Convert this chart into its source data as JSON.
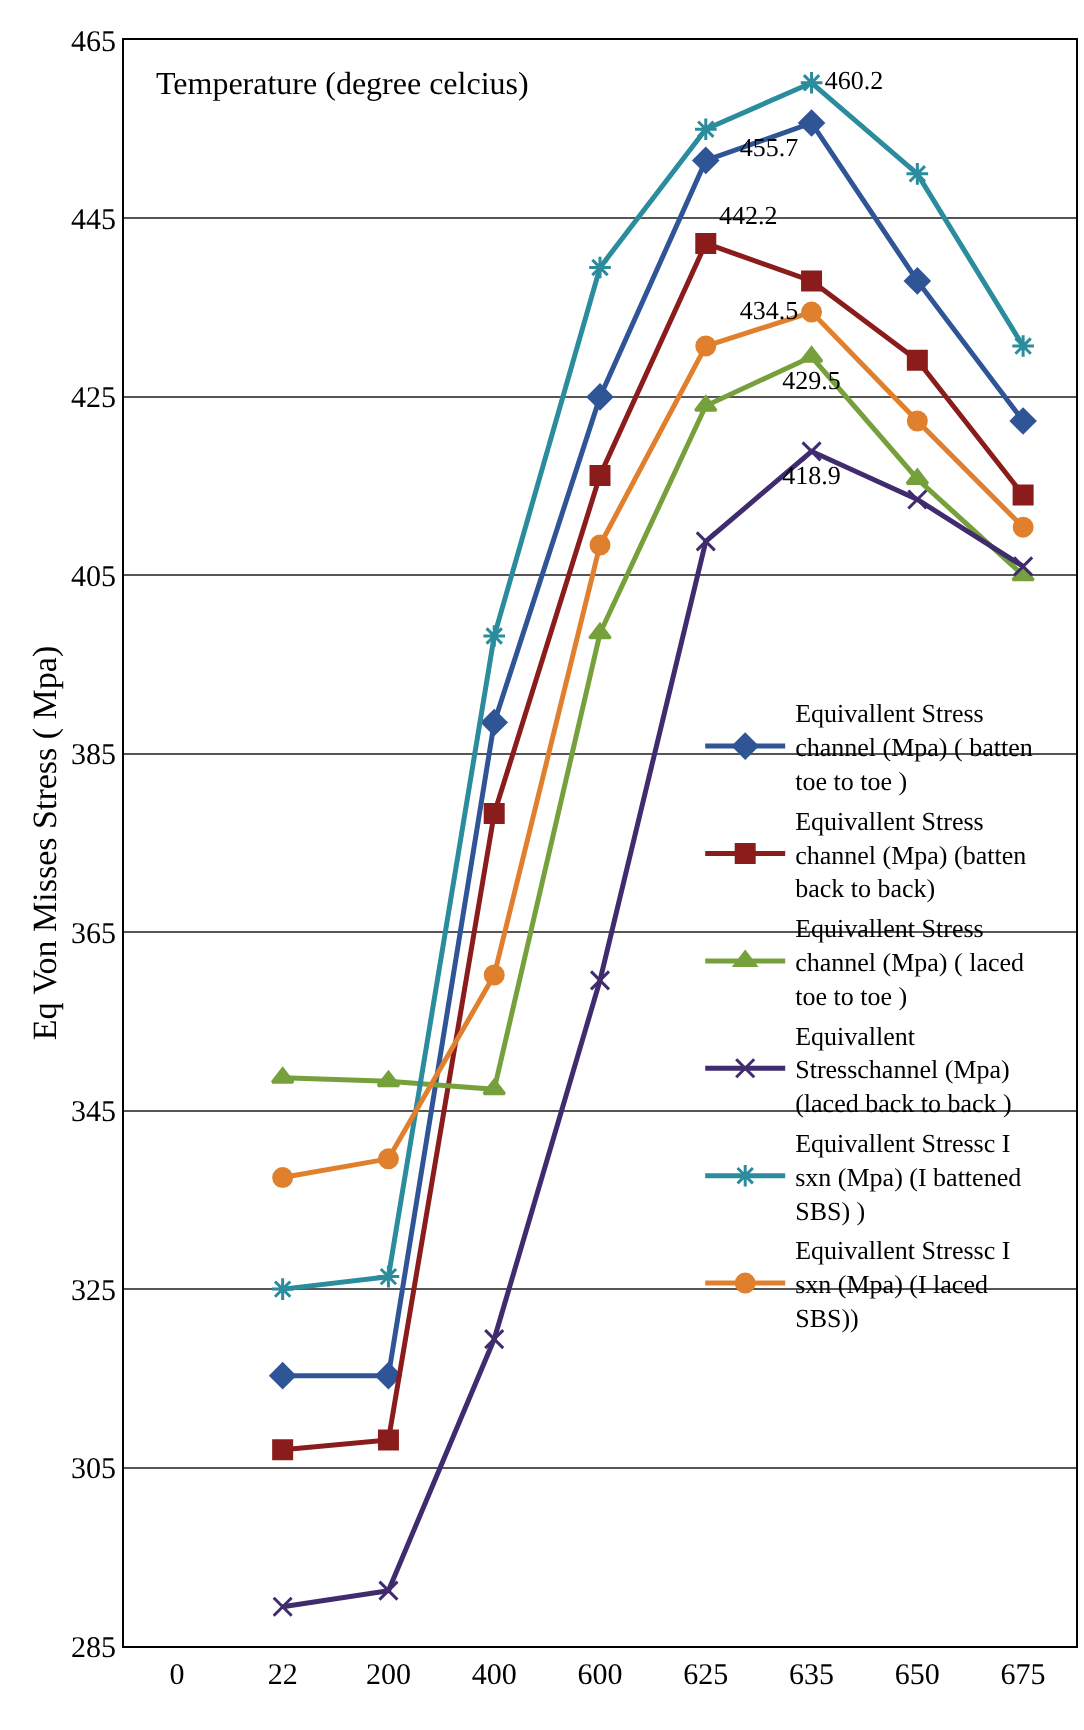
{
  "chart_data": {
    "type": "line",
    "xlabel": "Temperature (degree celcius)",
    "ylabel": "Eq Von Misses Stress ( Mpa)",
    "categories": [
      "0",
      "22",
      "200",
      "400",
      "600",
      "625",
      "635",
      "650",
      "675"
    ],
    "ylim": [
      285,
      465
    ],
    "yticks": [
      285,
      305,
      325,
      345,
      365,
      385,
      405,
      425,
      445,
      465
    ],
    "grid": "y",
    "legend": "right",
    "series": [
      {
        "name": "Equivallent Stress channel (Mpa) ( batten toe to toe )",
        "color": "#2f5597",
        "marker": "diamond",
        "values": [
          null,
          315.3,
          315.3,
          388.5,
          425,
          451.5,
          455.7,
          438,
          422.3
        ],
        "value_labels": [
          null,
          null,
          null,
          null,
          null,
          null,
          "455.7",
          null,
          null
        ]
      },
      {
        "name": "Equivallent Stress channel (Mpa) (batten back to back)",
        "color": "#8b1c1c",
        "marker": "square",
        "values": [
          null,
          307,
          308.1,
          378.3,
          416.2,
          442.2,
          438,
          429.1,
          414
        ],
        "value_labels": [
          null,
          null,
          null,
          null,
          null,
          "442.2",
          null,
          null,
          null
        ]
      },
      {
        "name": "Equivallent Stress channel (Mpa) ( laced toe to toe )",
        "color": "#76a03c",
        "marker": "triangle",
        "values": [
          null,
          348.7,
          348.3,
          347.4,
          398.5,
          424,
          429.5,
          415.8,
          405
        ],
        "value_labels": [
          null,
          null,
          null,
          null,
          null,
          null,
          "429.5",
          null,
          null
        ]
      },
      {
        "name": "Equivallent Stresschannel (Mpa) (laced back to back )",
        "color": "#3f2b6e",
        "marker": "cross",
        "values": [
          null,
          289.4,
          291.2,
          319.4,
          359.6,
          408.8,
          418.9,
          413.5,
          406
        ],
        "value_labels": [
          null,
          null,
          null,
          null,
          null,
          null,
          "418.9",
          null,
          null
        ]
      },
      {
        "name": "Equivallent Stressc I sxn (Mpa) (I battened SBS) )",
        "color": "#2a8c9c",
        "marker": "cross",
        "values": [
          null,
          325,
          326.4,
          398.2,
          439.5,
          455,
          460.2,
          450,
          430.7
        ],
        "value_labels": [
          null,
          null,
          null,
          null,
          null,
          null,
          "460.2",
          null,
          null
        ]
      },
      {
        "name": "Equivallent Stressc I sxn (Mpa) (I laced SBS))",
        "color": "#e0802e",
        "marker": "circle",
        "values": [
          null,
          337.5,
          339.6,
          360.2,
          408.4,
          430.7,
          434.5,
          422.3,
          410.4
        ],
        "value_labels": [
          null,
          null,
          null,
          null,
          null,
          null,
          "434.5",
          null,
          null
        ]
      }
    ]
  }
}
